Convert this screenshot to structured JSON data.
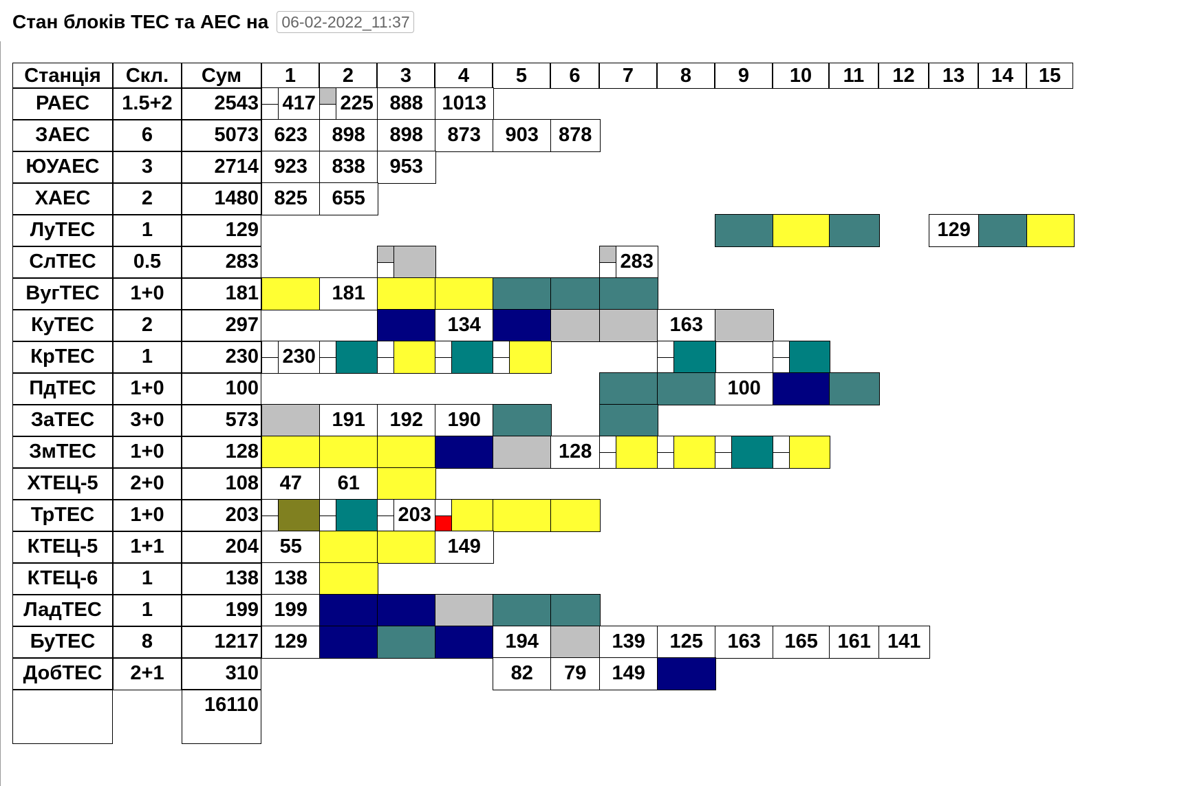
{
  "header": {
    "title": "Стан блоків ТЕС та АЕС на",
    "datetime_value": "06-02-2022_11:37"
  },
  "colors": {
    "yellow": "#ffff33",
    "teal": "#408080",
    "teal_bright": "#008080",
    "navy": "#000080",
    "gray": "#c0c0c0",
    "olive": "#808020",
    "red": "#ff0000",
    "white": "#ffffff"
  },
  "table": {
    "columns": [
      "Станція",
      "Скл.",
      "Сум",
      "1",
      "2",
      "3",
      "4",
      "5",
      "6",
      "7",
      "8",
      "9",
      "10",
      "11",
      "12",
      "13",
      "14",
      "15"
    ],
    "rows": [
      {
        "station": "РАЕС",
        "composition": "1.5+2",
        "sum": "2543",
        "units": [
          {
            "col": 1,
            "value": "417",
            "fill": "white",
            "mark": "plain"
          },
          {
            "col": 2,
            "value": "225",
            "fill": "white",
            "mark": "gray-top"
          },
          {
            "col": 3,
            "value": "888",
            "fill": "white"
          },
          {
            "col": 4,
            "value": "1013",
            "fill": "white"
          }
        ]
      },
      {
        "station": "ЗАЕС",
        "composition": "6",
        "sum": "5073",
        "units": [
          {
            "col": 1,
            "value": "623",
            "fill": "white"
          },
          {
            "col": 2,
            "value": "898",
            "fill": "white"
          },
          {
            "col": 3,
            "value": "898",
            "fill": "white"
          },
          {
            "col": 4,
            "value": "873",
            "fill": "white"
          },
          {
            "col": 5,
            "value": "903",
            "fill": "white"
          },
          {
            "col": 6,
            "value": "878",
            "fill": "white"
          }
        ]
      },
      {
        "station": "ЮУАЕС",
        "composition": "3",
        "sum": "2714",
        "units": [
          {
            "col": 1,
            "value": "923",
            "fill": "white"
          },
          {
            "col": 2,
            "value": "838",
            "fill": "white"
          },
          {
            "col": 3,
            "value": "953",
            "fill": "white"
          }
        ]
      },
      {
        "station": "ХАЕС",
        "composition": "2",
        "sum": "1480",
        "units": [
          {
            "col": 1,
            "value": "825",
            "fill": "white"
          },
          {
            "col": 2,
            "value": "655",
            "fill": "white"
          }
        ]
      },
      {
        "station": "ЛуТЕС",
        "composition": "1",
        "sum": "129",
        "units": [
          {
            "col": 9,
            "value": "",
            "fill": "teal"
          },
          {
            "col": 10,
            "value": "",
            "fill": "yellow"
          },
          {
            "col": 11,
            "value": "",
            "fill": "teal"
          },
          {
            "col": 13,
            "value": "129",
            "fill": "white"
          },
          {
            "col": 14,
            "value": "",
            "fill": "teal"
          },
          {
            "col": 15,
            "value": "",
            "fill": "yellow"
          }
        ]
      },
      {
        "station": "СлТЕС",
        "composition": "0.5",
        "sum": "283",
        "units": [
          {
            "col": 3,
            "value": "",
            "fill": "gray",
            "mark": "gray-top"
          },
          {
            "col": 7,
            "value": "283",
            "fill": "white",
            "mark": "gray-top-nohalf"
          }
        ]
      },
      {
        "station": "ВугТЕС",
        "composition": "1+0",
        "sum": "181",
        "units": [
          {
            "col": 1,
            "value": "",
            "fill": "yellow"
          },
          {
            "col": 2,
            "value": "181",
            "fill": "white"
          },
          {
            "col": 3,
            "value": "",
            "fill": "yellow"
          },
          {
            "col": 4,
            "value": "",
            "fill": "yellow"
          },
          {
            "col": 5,
            "value": "",
            "fill": "teal"
          },
          {
            "col": 6,
            "value": "",
            "fill": "teal"
          },
          {
            "col": 7,
            "value": "",
            "fill": "teal"
          }
        ]
      },
      {
        "station": "КуТЕС",
        "composition": "2",
        "sum": "297",
        "units": [
          {
            "col": 3,
            "value": "",
            "fill": "navy"
          },
          {
            "col": 4,
            "value": "134",
            "fill": "white"
          },
          {
            "col": 5,
            "value": "",
            "fill": "navy"
          },
          {
            "col": 6,
            "value": "",
            "fill": "gray"
          },
          {
            "col": 7,
            "value": "",
            "fill": "gray"
          },
          {
            "col": 8,
            "value": "163",
            "fill": "white"
          },
          {
            "col": 9,
            "value": "",
            "fill": "gray"
          }
        ]
      },
      {
        "station": "КрТЕС",
        "composition": "1",
        "sum": "230",
        "units": [
          {
            "col": 1,
            "value": "230",
            "fill": "white",
            "mark": "plain"
          },
          {
            "col": 2,
            "value": "",
            "fill": "teal_bright",
            "mark": "plain"
          },
          {
            "col": 3,
            "value": "",
            "fill": "yellow",
            "mark": "plain"
          },
          {
            "col": 4,
            "value": "",
            "fill": "teal_bright",
            "mark": "plain"
          },
          {
            "col": 5,
            "value": "",
            "fill": "yellow",
            "mark": "plain"
          },
          {
            "col": 8,
            "value": "",
            "fill": "teal_bright",
            "mark": "plain"
          },
          {
            "col": 10,
            "value": "",
            "fill": "teal_bright",
            "mark": "plain"
          }
        ]
      },
      {
        "station": "ПдТЕС",
        "composition": "1+0",
        "sum": "100",
        "units": [
          {
            "col": 7,
            "value": "",
            "fill": "teal"
          },
          {
            "col": 8,
            "value": "",
            "fill": "teal"
          },
          {
            "col": 9,
            "value": "100",
            "fill": "white"
          },
          {
            "col": 10,
            "value": "",
            "fill": "navy"
          },
          {
            "col": 11,
            "value": "",
            "fill": "teal"
          }
        ]
      },
      {
        "station": "ЗаТЕС",
        "composition": "3+0",
        "sum": "573",
        "units": [
          {
            "col": 1,
            "value": "",
            "fill": "gray"
          },
          {
            "col": 2,
            "value": "191",
            "fill": "white"
          },
          {
            "col": 3,
            "value": "192",
            "fill": "white"
          },
          {
            "col": 4,
            "value": "190",
            "fill": "white"
          },
          {
            "col": 5,
            "value": "",
            "fill": "teal"
          },
          {
            "col": 7,
            "value": "",
            "fill": "teal"
          }
        ]
      },
      {
        "station": "ЗмТЕС",
        "composition": "1+0",
        "sum": "128",
        "units": [
          {
            "col": 1,
            "value": "",
            "fill": "yellow"
          },
          {
            "col": 2,
            "value": "",
            "fill": "yellow"
          },
          {
            "col": 3,
            "value": "",
            "fill": "yellow"
          },
          {
            "col": 4,
            "value": "",
            "fill": "navy"
          },
          {
            "col": 5,
            "value": "",
            "fill": "gray"
          },
          {
            "col": 6,
            "value": "128",
            "fill": "white"
          },
          {
            "col": 7,
            "value": "",
            "fill": "yellow",
            "mark": "plain"
          },
          {
            "col": 8,
            "value": "",
            "fill": "yellow",
            "mark": "plain"
          },
          {
            "col": 9,
            "value": "",
            "fill": "teal_bright",
            "mark": "plain"
          },
          {
            "col": 10,
            "value": "",
            "fill": "yellow",
            "mark": "plain"
          }
        ]
      },
      {
        "station": "ХТЕЦ-5",
        "composition": "2+0",
        "sum": "108",
        "units": [
          {
            "col": 1,
            "value": "47",
            "fill": "white"
          },
          {
            "col": 2,
            "value": "61",
            "fill": "white"
          },
          {
            "col": 3,
            "value": "",
            "fill": "yellow"
          }
        ]
      },
      {
        "station": "ТрТЕС",
        "composition": "1+0",
        "sum": "203",
        "units": [
          {
            "col": 1,
            "value": "",
            "fill": "olive",
            "mark": "plain"
          },
          {
            "col": 2,
            "value": "",
            "fill": "teal_bright",
            "mark": "plain"
          },
          {
            "col": 3,
            "value": "203",
            "fill": "white",
            "mark": "plain"
          },
          {
            "col": 4,
            "value": "",
            "fill": "yellow",
            "mark": "red-bottom"
          },
          {
            "col": 5,
            "value": "",
            "fill": "yellow"
          },
          {
            "col": 6,
            "value": "",
            "fill": "yellow"
          }
        ]
      },
      {
        "station": "КТЕЦ-5",
        "composition": "1+1",
        "sum": "204",
        "units": [
          {
            "col": 1,
            "value": "55",
            "fill": "white"
          },
          {
            "col": 2,
            "value": "",
            "fill": "yellow"
          },
          {
            "col": 3,
            "value": "",
            "fill": "yellow"
          },
          {
            "col": 4,
            "value": "149",
            "fill": "white"
          }
        ]
      },
      {
        "station": "КТЕЦ-6",
        "composition": "1",
        "sum": "138",
        "units": [
          {
            "col": 1,
            "value": "138",
            "fill": "white"
          },
          {
            "col": 2,
            "value": "",
            "fill": "yellow"
          }
        ]
      },
      {
        "station": "ЛадТЕС",
        "composition": "1",
        "sum": "199",
        "units": [
          {
            "col": 1,
            "value": "199",
            "fill": "white"
          },
          {
            "col": 2,
            "value": "",
            "fill": "navy"
          },
          {
            "col": 3,
            "value": "",
            "fill": "navy"
          },
          {
            "col": 4,
            "value": "",
            "fill": "gray"
          },
          {
            "col": 5,
            "value": "",
            "fill": "teal"
          },
          {
            "col": 6,
            "value": "",
            "fill": "teal"
          }
        ]
      },
      {
        "station": "БуТЕС",
        "composition": "8",
        "sum": "1217",
        "units": [
          {
            "col": 1,
            "value": "129",
            "fill": "white"
          },
          {
            "col": 2,
            "value": "",
            "fill": "navy"
          },
          {
            "col": 3,
            "value": "",
            "fill": "teal"
          },
          {
            "col": 4,
            "value": "",
            "fill": "navy"
          },
          {
            "col": 5,
            "value": "194",
            "fill": "white"
          },
          {
            "col": 6,
            "value": "",
            "fill": "gray"
          },
          {
            "col": 7,
            "value": "139",
            "fill": "white"
          },
          {
            "col": 8,
            "value": "125",
            "fill": "white"
          },
          {
            "col": 9,
            "value": "163",
            "fill": "white"
          },
          {
            "col": 10,
            "value": "165",
            "fill": "white"
          },
          {
            "col": 11,
            "value": "161",
            "fill": "white"
          },
          {
            "col": 12,
            "value": "141",
            "fill": "white"
          }
        ]
      },
      {
        "station": "ДобТЕС",
        "composition": "2+1",
        "sum": "310",
        "units": [
          {
            "col": 5,
            "value": "82",
            "fill": "white"
          },
          {
            "col": 6,
            "value": "79",
            "fill": "white"
          },
          {
            "col": 7,
            "value": "149",
            "fill": "white"
          },
          {
            "col": 8,
            "value": "",
            "fill": "navy"
          }
        ]
      }
    ],
    "total": "16110"
  }
}
